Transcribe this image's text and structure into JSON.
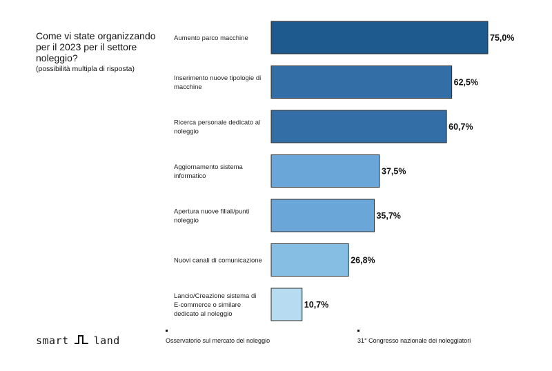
{
  "question": {
    "title": "Come vi state organizzando per il 2023 per il settore noleggio?",
    "note": "(possibilità multipla di risposta)"
  },
  "chart_data": {
    "type": "bar",
    "orientation": "horizontal",
    "categories": [
      "Aumento parco macchine",
      "Inserimento nuove tipologie di macchine",
      "Ricerca personale dedicato al noleggio",
      "Aggiornamento sistema informatico",
      "Apertura nuove filiali/punti noleggio",
      "Nuovi canali di comunicazione",
      "Lancio/Creazione sistema di E-commerce o similare dedicato al noleggio"
    ],
    "category_lines": [
      [
        "Aumento parco macchine"
      ],
      [
        "Inserimento nuove tipologie di",
        "macchine"
      ],
      [
        "Ricerca personale dedicato al",
        "noleggio"
      ],
      [
        "Aggiornamento sistema",
        "informatico"
      ],
      [
        "Apertura nuove filiali/punti",
        "noleggio"
      ],
      [
        "Nuovi canali di comunicazione"
      ],
      [
        "Lancio/Creazione sistema di",
        "E-commerce o similare",
        "dedicato al noleggio"
      ]
    ],
    "values": [
      75.0,
      62.5,
      60.7,
      37.5,
      35.7,
      26.8,
      10.7
    ],
    "value_labels": [
      "75,0%",
      "62,5%",
      "60,7%",
      "37,5%",
      "35,7%",
      "26,8%",
      "10,7%"
    ],
    "bar_colors": [
      "#1f5a8f",
      "#336ea6",
      "#336ea6",
      "#6aa6d7",
      "#6aa6d7",
      "#86bde3",
      "#b7dcf2"
    ],
    "xlim": [
      0,
      75
    ],
    "grid": false,
    "legend": "none"
  },
  "footer": {
    "logo_left": "smart",
    "logo_right": "land",
    "logo_icon": "waveform-icon",
    "left_text": "Osservatorio sul mercato del noleggio",
    "right_text": "31° Congresso nazionale dei noleggiatori"
  }
}
